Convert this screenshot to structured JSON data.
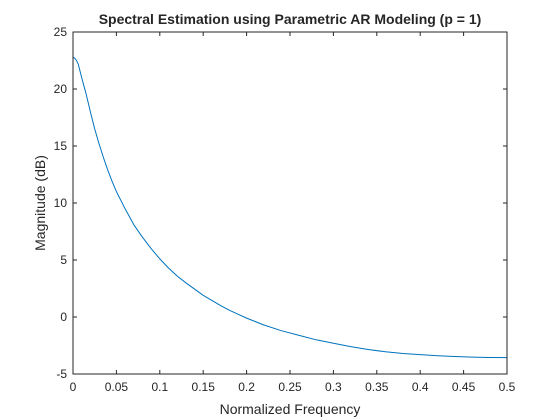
{
  "chart_data": {
    "type": "line",
    "title": "Spectral Estimation using Parametric AR Modeling (p = 1)",
    "xlabel": "Normalized Frequency",
    "ylabel": "Magnitude (dB)",
    "xlim": [
      0,
      0.5
    ],
    "ylim": [
      -5,
      25
    ],
    "xticks": [
      0,
      0.05,
      0.1,
      0.15,
      0.2,
      0.25,
      0.3,
      0.35,
      0.4,
      0.45,
      0.5
    ],
    "xtick_labels": [
      "0",
      "0.05",
      "0.1",
      "0.15",
      "0.2",
      "0.25",
      "0.3",
      "0.35",
      "0.4",
      "0.45",
      "0.5"
    ],
    "yticks": [
      -5,
      0,
      5,
      10,
      15,
      20,
      25
    ],
    "ytick_labels": [
      "-5",
      "0",
      "5",
      "10",
      "15",
      "20",
      "25"
    ],
    "grid": false,
    "box": true,
    "series": [
      {
        "color": "#0072bd",
        "x": [
          0,
          0.002,
          0.004,
          0.006,
          0.008,
          0.01,
          0.015,
          0.02,
          0.025,
          0.03,
          0.035,
          0.04,
          0.045,
          0.05,
          0.06,
          0.07,
          0.08,
          0.09,
          0.1,
          0.11,
          0.12,
          0.13,
          0.14,
          0.15,
          0.16,
          0.17,
          0.18,
          0.19,
          0.2,
          0.22,
          0.24,
          0.26,
          0.28,
          0.3,
          0.32,
          0.34,
          0.36,
          0.38,
          0.4,
          0.42,
          0.44,
          0.46,
          0.48,
          0.5
        ],
        "y": [
          22.8,
          22.7,
          22.5,
          22.2,
          21.6,
          21.0,
          19.6,
          18.0,
          16.5,
          15.2,
          14.0,
          12.9,
          11.9,
          11.0,
          9.5,
          8.1,
          7.0,
          6.0,
          5.1,
          4.3,
          3.6,
          3.0,
          2.45,
          1.9,
          1.45,
          1.0,
          0.6,
          0.25,
          -0.1,
          -0.7,
          -1.2,
          -1.6,
          -2.0,
          -2.3,
          -2.6,
          -2.85,
          -3.05,
          -3.2,
          -3.3,
          -3.4,
          -3.47,
          -3.52,
          -3.55,
          -3.56
        ]
      }
    ]
  }
}
